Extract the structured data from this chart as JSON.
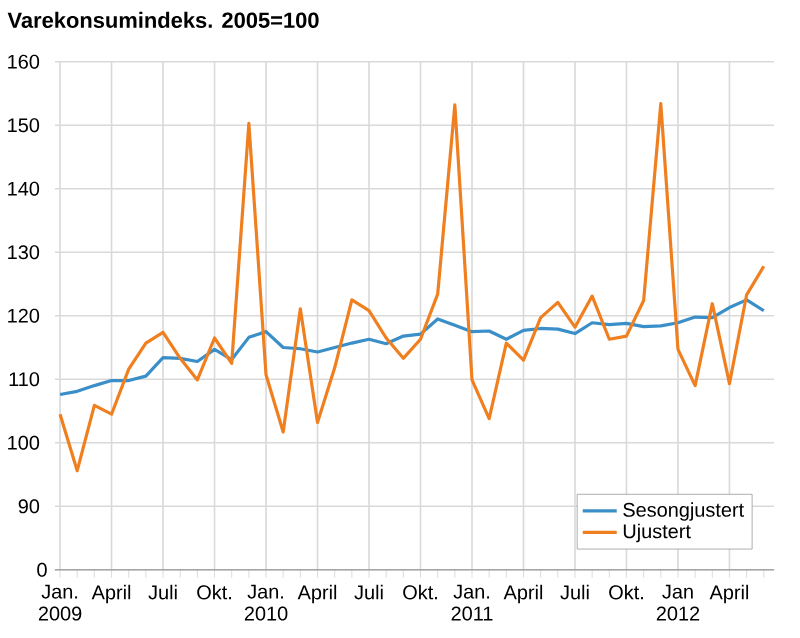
{
  "chart_data": {
    "type": "line",
    "title": "Varekonsumindeks. 2005=100",
    "categories": [
      "Jan. 2009",
      null,
      null,
      "April",
      null,
      null,
      "Juli",
      null,
      null,
      "Okt.",
      null,
      null,
      "Jan. 2010",
      null,
      null,
      "April",
      null,
      null,
      "Juli",
      null,
      null,
      "Okt.",
      null,
      null,
      "Jan. 2011",
      null,
      null,
      "April",
      null,
      null,
      "Juli",
      null,
      null,
      "Okt.",
      null,
      null,
      "Jan 2012",
      null,
      null,
      "April",
      null,
      null
    ],
    "series": [
      {
        "name": "Sesongjustert",
        "color": "#3a8fc8",
        "values": [
          107.6,
          108.1,
          109,
          109.8,
          109.8,
          110.5,
          113.4,
          113.3,
          112.8,
          114.7,
          113.1,
          116.6,
          117.5,
          115,
          114.8,
          114.3,
          115,
          115.7,
          116.3,
          115.6,
          116.8,
          117.1,
          119.5,
          118.5,
          117.5,
          117.6,
          116.3,
          117.7,
          118,
          117.9,
          117.2,
          118.9,
          118.6,
          118.8,
          118.3,
          118.4,
          118.9,
          119.8,
          119.7,
          121.3,
          122.5,
          120.8
        ]
      },
      {
        "name": "Ujustert",
        "color": "#f07f1f",
        "values": [
          104.5,
          95.6,
          105.9,
          104.5,
          111.6,
          115.7,
          117.4,
          113.3,
          109.9,
          116.5,
          112.5,
          150.3,
          110.7,
          101.7,
          121.1,
          103.2,
          111.8,
          122.5,
          120.8,
          116.5,
          113.3,
          116.3,
          123.4,
          153.2,
          109.9,
          103.8,
          115.7,
          113,
          119.7,
          122.1,
          118.2,
          123.1,
          116.3,
          116.8,
          122.4,
          153.4,
          114.7,
          109,
          121.9,
          109.3,
          123.3,
          127.8
        ]
      }
    ],
    "ylim": [
      80,
      160
    ],
    "annotations": [
      "0"
    ],
    "yticks": [
      {
        "value": 80,
        "label": null
      },
      90,
      100,
      110,
      120,
      130,
      140,
      150,
      160
    ],
    "grid": true,
    "legend": "bottom right",
    "marker": "none",
    "line_style": "solid"
  }
}
